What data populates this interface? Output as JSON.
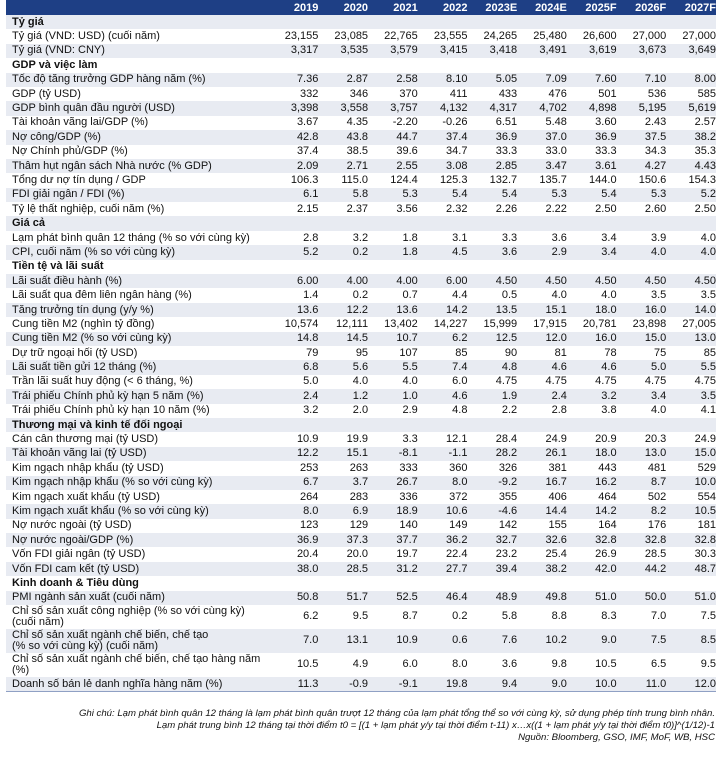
{
  "columns": [
    "2019",
    "2020",
    "2021",
    "2022",
    "2023E",
    "2024E",
    "2025F",
    "2026F",
    "2027F"
  ],
  "colors": {
    "header_bg": "#1e3f85",
    "stripe": "#e8ebf2"
  },
  "sections": [
    {
      "title": "Tỷ giá",
      "rows": [
        {
          "label": "Tỷ giá (VND: USD) (cuối năm)",
          "values": [
            "23,155",
            "23,085",
            "22,765",
            "23,555",
            "24,265",
            "25,480",
            "26,600",
            "27,000",
            "27,000"
          ]
        },
        {
          "label": "Tỷ giá (VND: CNY)",
          "values": [
            "3,317",
            "3,535",
            "3,579",
            "3,415",
            "3,418",
            "3,491",
            "3,619",
            "3,673",
            "3,649"
          ]
        }
      ]
    },
    {
      "title": "GDP và việc làm",
      "rows": [
        {
          "label": "Tốc độ tăng trưởng GDP hàng năm (%)",
          "values": [
            "7.36",
            "2.87",
            "2.58",
            "8.10",
            "5.05",
            "7.09",
            "7.60",
            "7.10",
            "8.00"
          ]
        },
        {
          "label": "GDP (tỷ USD)",
          "values": [
            "332",
            "346",
            "370",
            "411",
            "433",
            "476",
            "501",
            "536",
            "585"
          ]
        },
        {
          "label": "GDP bình quân đầu người (USD)",
          "values": [
            "3,398",
            "3,558",
            "3,757",
            "4,132",
            "4,317",
            "4,702",
            "4,898",
            "5,195",
            "5,619"
          ]
        },
        {
          "label": "Tài khoản vãng lai/GDP (%)",
          "values": [
            "3.67",
            "4.35",
            "-2.20",
            "-0.26",
            "6.51",
            "5.48",
            "3.60",
            "2.43",
            "2.57"
          ]
        },
        {
          "label": "Nợ công/GDP (%)",
          "values": [
            "42.8",
            "43.8",
            "44.7",
            "37.4",
            "36.9",
            "37.0",
            "36.9",
            "37.5",
            "38.2"
          ]
        },
        {
          "label": "Nợ Chính phủ/GDP (%)",
          "values": [
            "37.4",
            "38.5",
            "39.6",
            "34.7",
            "33.3",
            "33.0",
            "33.3",
            "34.3",
            "35.3"
          ]
        },
        {
          "label": "Thâm hụt ngân sách Nhà nước (% GDP)",
          "values": [
            "2.09",
            "2.71",
            "2.55",
            "3.08",
            "2.85",
            "3.47",
            "3.61",
            "4.27",
            "4.43"
          ]
        },
        {
          "label": "Tổng dư nợ tín dụng / GDP",
          "values": [
            "106.3",
            "115.0",
            "124.4",
            "125.3",
            "132.7",
            "135.7",
            "144.0",
            "150.6",
            "154.3"
          ]
        },
        {
          "label": "FDI giải ngân / FDI (%)",
          "values": [
            "6.1",
            "5.8",
            "5.3",
            "5.4",
            "5.4",
            "5.3",
            "5.4",
            "5.3",
            "5.2"
          ]
        },
        {
          "label": "Tỷ lệ thất nghiệp, cuối năm (%)",
          "values": [
            "2.15",
            "2.37",
            "3.56",
            "2.32",
            "2.26",
            "2.22",
            "2.50",
            "2.60",
            "2.50"
          ]
        }
      ]
    },
    {
      "title": "Giá cả",
      "rows": [
        {
          "label": "Lạm phát bình quân 12 tháng (% so với cùng kỳ)",
          "values": [
            "2.8",
            "3.2",
            "1.8",
            "3.1",
            "3.3",
            "3.6",
            "3.4",
            "3.9",
            "4.0"
          ]
        },
        {
          "label": "CPI, cuối năm (% so với cùng kỳ)",
          "values": [
            "5.2",
            "0.2",
            "1.8",
            "4.5",
            "3.6",
            "2.9",
            "3.4",
            "4.0",
            "4.0"
          ]
        }
      ]
    },
    {
      "title": "Tiền tệ và lãi suất",
      "rows": [
        {
          "label": "Lãi suất điều hành (%)",
          "values": [
            "6.00",
            "4.00",
            "4.00",
            "6.00",
            "4.50",
            "4.50",
            "4.50",
            "4.50",
            "4.50"
          ]
        },
        {
          "label": "Lãi suất qua đêm liên ngân hàng (%)",
          "values": [
            "1.4",
            "0.2",
            "0.7",
            "4.4",
            "0.5",
            "4.0",
            "4.0",
            "3.5",
            "3.5"
          ]
        },
        {
          "label": "Tăng trưởng tín dụng (y/y %)",
          "values": [
            "13.6",
            "12.2",
            "13.6",
            "14.2",
            "13.5",
            "15.1",
            "18.0",
            "16.0",
            "14.0"
          ]
        },
        {
          "label": "Cung tiền M2 (nghìn tỷ đồng)",
          "values": [
            "10,574",
            "12,111",
            "13,402",
            "14,227",
            "15,999",
            "17,915",
            "20,781",
            "23,898",
            "27,005"
          ]
        },
        {
          "label": "Cung tiền M2 (% so với cùng kỳ)",
          "values": [
            "14.8",
            "14.5",
            "10.7",
            "6.2",
            "12.5",
            "12.0",
            "16.0",
            "15.0",
            "13.0"
          ]
        },
        {
          "label": "Dự trữ ngoại hối (tỷ USD)",
          "values": [
            "79",
            "95",
            "107",
            "85",
            "90",
            "81",
            "78",
            "75",
            "85"
          ]
        },
        {
          "label": "Lãi suất tiền gửi 12 tháng (%)",
          "values": [
            "6.8",
            "5.6",
            "5.5",
            "7.4",
            "4.8",
            "4.6",
            "4.6",
            "5.0",
            "5.5"
          ]
        },
        {
          "label": "Trần lãi suất huy động (< 6 tháng, %)",
          "values": [
            "5.0",
            "4.0",
            "4.0",
            "6.0",
            "4.75",
            "4.75",
            "4.75",
            "4.75",
            "4.75"
          ]
        },
        {
          "label": "Trái phiếu Chính phủ kỳ hạn 5 năm (%)",
          "values": [
            "2.4",
            "1.2",
            "1.0",
            "4.6",
            "1.9",
            "2.4",
            "3.2",
            "3.4",
            "3.5"
          ]
        },
        {
          "label": "Trái phiếu Chính phủ kỳ hạn 10 năm (%)",
          "values": [
            "3.2",
            "2.0",
            "2.9",
            "4.8",
            "2.2",
            "2.8",
            "3.8",
            "4.0",
            "4.1"
          ]
        }
      ]
    },
    {
      "title": "Thương mại và kinh tế đối ngoại",
      "rows": [
        {
          "label": "Cán cân thương mại (tỷ USD)",
          "values": [
            "10.9",
            "19.9",
            "3.3",
            "12.1",
            "28.4",
            "24.9",
            "20.9",
            "20.3",
            "24.9"
          ]
        },
        {
          "label": "Tài khoản vãng lai (tỷ USD)",
          "values": [
            "12.2",
            "15.1",
            "-8.1",
            "-1.1",
            "28.2",
            "26.1",
            "18.0",
            "13.0",
            "15.0"
          ]
        },
        {
          "label": "Kim ngạch nhập khẩu (tỷ USD)",
          "values": [
            "253",
            "263",
            "333",
            "360",
            "326",
            "381",
            "443",
            "481",
            "529"
          ]
        },
        {
          "label": "Kim ngạch nhập khẩu (% so với cùng kỳ)",
          "values": [
            "6.7",
            "3.7",
            "26.7",
            "8.0",
            "-9.2",
            "16.7",
            "16.2",
            "8.7",
            "10.0"
          ]
        },
        {
          "label": "Kim ngạch xuất khẩu (tỷ USD)",
          "values": [
            "264",
            "283",
            "336",
            "372",
            "355",
            "406",
            "464",
            "502",
            "554"
          ]
        },
        {
          "label": "Kim ngạch xuất khẩu (% so với cùng kỳ)",
          "values": [
            "8.0",
            "6.9",
            "18.9",
            "10.6",
            "-4.6",
            "14.4",
            "14.2",
            "8.2",
            "10.5"
          ]
        },
        {
          "label": "Nợ nước ngoài (tỷ USD)",
          "values": [
            "123",
            "129",
            "140",
            "149",
            "142",
            "155",
            "164",
            "176",
            "181"
          ]
        },
        {
          "label": "Nợ nước ngoài/GDP (%)",
          "values": [
            "36.9",
            "37.3",
            "37.7",
            "36.2",
            "32.7",
            "32.6",
            "32.8",
            "32.8",
            "32.8"
          ]
        },
        {
          "label": "Vốn FDI giải ngân (tỷ USD)",
          "values": [
            "20.4",
            "20.0",
            "19.7",
            "22.4",
            "23.2",
            "25.4",
            "26.9",
            "28.5",
            "30.3"
          ]
        },
        {
          "label": "Vốn FDI cam kết (tỷ USD)",
          "values": [
            "38.0",
            "28.5",
            "31.2",
            "27.7",
            "39.4",
            "38.2",
            "42.0",
            "44.2",
            "48.7"
          ]
        }
      ]
    },
    {
      "title": "Kinh doanh & Tiêu dùng",
      "rows": [
        {
          "label": "PMI ngành sản xuất (cuối năm)",
          "values": [
            "50.8",
            "51.7",
            "52.5",
            "46.4",
            "48.9",
            "49.8",
            "51.0",
            "50.0",
            "51.0"
          ]
        },
        {
          "label": "Chỉ số sản xuất công nghiệp (% so với cùng kỳ) (cuối năm)",
          "label_lines": [
            "Chỉ số sản xuất công nghiệp (% so với cùng kỳ)",
            "(cuối năm)"
          ],
          "values": [
            "6.2",
            "9.5",
            "8.7",
            "0.2",
            "5.8",
            "8.8",
            "8.3",
            "7.0",
            "7.5"
          ]
        },
        {
          "label": "Chỉ số sản xuất ngành chế biến, chế tạo (% so với cùng kỳ) (cuối năm)",
          "label_lines": [
            "Chỉ số sản xuất ngành chế biến, chế tạo",
            "(% so với cùng kỳ) (cuối năm)"
          ],
          "values": [
            "7.0",
            "13.1",
            "10.9",
            "0.6",
            "7.6",
            "10.2",
            "9.0",
            "7.5",
            "8.5"
          ]
        },
        {
          "label": "Chỉ số sản xuất ngành chế biến, chế tạo hàng năm (%)",
          "label_lines": [
            "Chỉ số sản xuất ngành chế biến, chế tạo hàng năm",
            "(%)"
          ],
          "values": [
            "10.5",
            "4.9",
            "6.0",
            "8.0",
            "3.6",
            "9.8",
            "10.5",
            "6.5",
            "9.5"
          ]
        },
        {
          "label": "Doanh số bán lẻ danh nghĩa hàng năm (%)",
          "values": [
            "11.3",
            "-0.9",
            "-9.1",
            "19.8",
            "9.4",
            "9.0",
            "10.0",
            "11.0",
            "12.0"
          ]
        }
      ]
    }
  ],
  "notes": {
    "note1": "Ghi chú: Lạm phát bình quân 12 tháng là lạm phát bình quân trượt 12 tháng của lạm phát tổng thể so với cùng kỳ, sử dụng phép tính trung bình nhân.",
    "note2": "Lạm phát trung bình 12 tháng tại thời điểm t0 = [(1 + lạm phát y/y tại thời điểm t-11) x…x((1 + lạm phát y/y tại thời điểm t0)]^(1/12)-1",
    "source": "Nguồn: Bloomberg, GSO, IMF, MoF, WB, HSC"
  }
}
